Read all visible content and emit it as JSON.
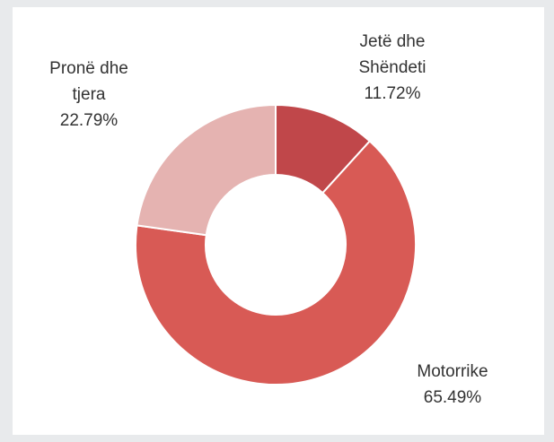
{
  "chart_data": {
    "type": "pie",
    "variant": "donut",
    "title": "",
    "start_angle_deg": 0,
    "direction": "clockwise",
    "slices": [
      {
        "label_lines": [
          "Jetë dhe",
          "Shëndeti"
        ],
        "value": 11.72,
        "value_label": "11.72%",
        "color": "#c0474a"
      },
      {
        "label_lines": [
          "Motorrike"
        ],
        "value": 65.49,
        "value_label": "65.49%",
        "color": "#d85a55"
      },
      {
        "label_lines": [
          "Pronë dhe",
          "tjera"
        ],
        "value": 22.79,
        "value_label": "22.79%",
        "color": "#e5b3b1"
      }
    ]
  },
  "colors": {
    "background": "#e8eaec",
    "panel": "#ffffff",
    "separator": "#ffffff",
    "text": "#333333"
  }
}
